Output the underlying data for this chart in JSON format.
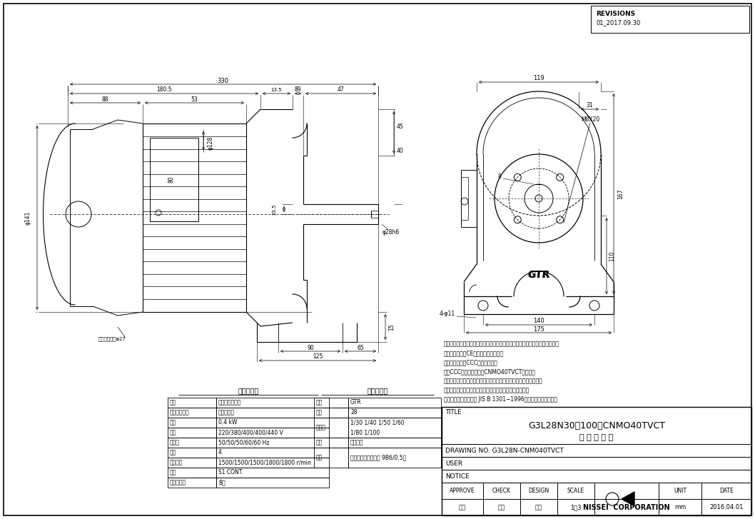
{
  "bg_color": "#ffffff",
  "line_color": "#000000",
  "revisions_title": "REVISIONS",
  "revision_date": "01_2017.09.30",
  "drawing_title1": "G3L28N30〜100－CNMO40TVCT",
  "drawing_title2": "外 形 寸 法 図",
  "drawing_no": "DRAWING NO. G3L28N-CNM040TVCT",
  "user_label": "USER",
  "notice_label": "NOTICE",
  "title_label": "TITLE",
  "approve_label": "APPROVE",
  "check_label": "CHECK",
  "design_label": "DESIGN",
  "scale_label": "SCALE",
  "unit_label": "UNIT",
  "date_label": "DATE",
  "approve_val": "池田",
  "check_val": "髭島",
  "design_val": "三浦",
  "scale_val": "1：3",
  "unit_val": "mm",
  "date_val": "2016.04.01",
  "company": "NISSEI  CORPORATION",
  "motor_spec_title": "モータ仕様",
  "motor_rows": [
    [
      "名称",
      "三相誘導電動機"
    ],
    [
      "保護冷却方式",
      "全閉外扇形"
    ],
    [
      "出力",
      "0.4 kW"
    ],
    [
      "電圧",
      "220/380/400/400/440 V"
    ],
    [
      "周波数",
      "50/50/50/60/60 Hz"
    ],
    [
      "極数",
      "4"
    ],
    [
      "回転速度",
      "1500/1500/1500/1800/1800 r/min"
    ],
    [
      "定格",
      "S1 CONT."
    ],
    [
      "耕熱クラス",
      "B種"
    ]
  ],
  "reducer_spec_title": "減速機仕様",
  "reducer_rows": [
    [
      "名称",
      "GTR"
    ],
    [
      "框番",
      "28"
    ],
    [
      "減速比",
      "1/30 1/40 1/50 1/60\n1/80 1/100"
    ],
    [
      "潤滑",
      "グリース"
    ],
    [
      "塗色",
      "グレー（マンセル値 9B6/0.5）"
    ]
  ],
  "notes": [
    "注。ターミナルボックスの引出口には標準グロメットが取り付けてあります。",
    "注。本モータはCEマーキング品です。",
    "注。本モータはCCC認証品です。",
    "注。CCC認証型式は、「CNMO40TVCT」です。",
    "注。アース線の長さは、モータの電源リードより長くして下さい。",
    "注。欧州で認定されたサーマルリレーを使用して下さい。",
    "注。出力軸キー寨法は JIS B 1301−1996平行キーに依ります。"
  ]
}
